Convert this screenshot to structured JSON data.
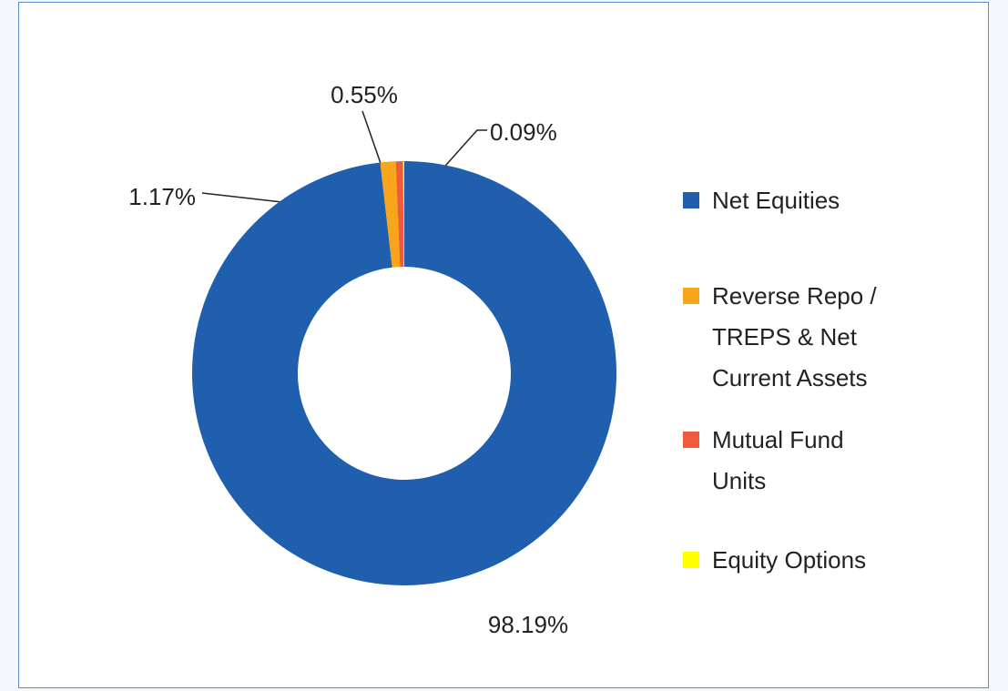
{
  "chart_data": {
    "type": "donut",
    "categories": [
      "Net Equities",
      "Reverse Repo / TREPS & Net Current Assets",
      "Mutual Fund Units",
      "Equity Options"
    ],
    "values": [
      98.19,
      1.17,
      0.55,
      0.09
    ],
    "value_labels": [
      "98.19%",
      "1.17%",
      "0.55%",
      "0.09%"
    ],
    "colors": [
      "#1f5fad",
      "#f9a51a",
      "#f05a3c",
      "#ffff00"
    ],
    "legend": "right"
  }
}
